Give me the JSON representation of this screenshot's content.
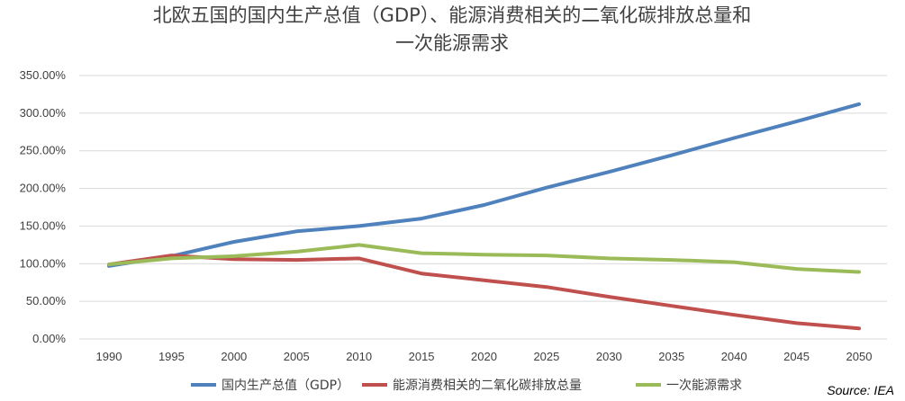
{
  "chart_data": {
    "type": "line",
    "title_lines": [
      "北欧五国的国内生产总值（GDP）、能源消费相关的二氧化碳排放总量和",
      "一次能源需求"
    ],
    "x": [
      "1990",
      "1995",
      "2000",
      "2005",
      "2010",
      "2015",
      "2020",
      "2025",
      "2030",
      "2035",
      "2040",
      "2045",
      "2050"
    ],
    "ylim": [
      0,
      350
    ],
    "yticks": [
      "0.00%",
      "50.00%",
      "100.00%",
      "150.00%",
      "200.00%",
      "250.00%",
      "300.00%",
      "350.00%"
    ],
    "grid": true,
    "legend_position": "bottom",
    "series": [
      {
        "name": "国内生产总值（GDP）",
        "color": "#4f81bd",
        "values": [
          97,
          110,
          129,
          143,
          150,
          160,
          178,
          201,
          222,
          244,
          267,
          289,
          312
        ]
      },
      {
        "name": "能源消费相关的二氧化碳排放总量",
        "color": "#c0504d",
        "values": [
          99,
          111,
          106,
          105,
          107,
          87,
          78,
          69,
          56,
          44,
          32,
          21,
          14
        ]
      },
      {
        "name": "一次能源需求",
        "color": "#9bbb59",
        "values": [
          99,
          107,
          110,
          116,
          125,
          114,
          112,
          111,
          107,
          105,
          102,
          93,
          89
        ]
      }
    ],
    "source": "Source: IEA"
  }
}
